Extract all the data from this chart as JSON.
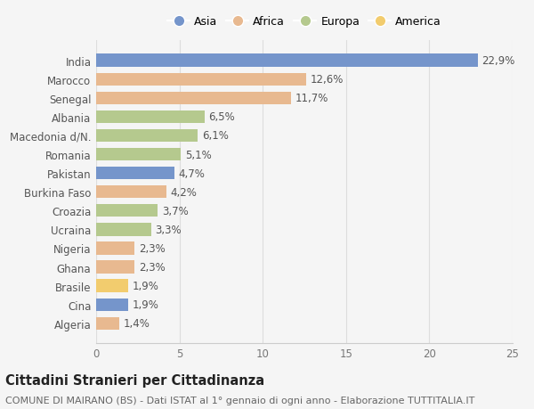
{
  "countries": [
    "Algeria",
    "Cina",
    "Brasile",
    "Ghana",
    "Nigeria",
    "Ucraina",
    "Croazia",
    "Burkina Faso",
    "Pakistan",
    "Romania",
    "Macedonia d/N.",
    "Albania",
    "Senegal",
    "Marocco",
    "India"
  ],
  "values": [
    1.4,
    1.9,
    1.9,
    2.3,
    2.3,
    3.3,
    3.7,
    4.2,
    4.7,
    5.1,
    6.1,
    6.5,
    11.7,
    12.6,
    22.9
  ],
  "labels": [
    "1,4%",
    "1,9%",
    "1,9%",
    "2,3%",
    "2,3%",
    "3,3%",
    "3,7%",
    "4,2%",
    "4,7%",
    "5,1%",
    "6,1%",
    "6,5%",
    "11,7%",
    "12,6%",
    "22,9%"
  ],
  "categories": [
    "Africa",
    "Asia",
    "America",
    "Africa",
    "Africa",
    "Europa",
    "Europa",
    "Africa",
    "Asia",
    "Europa",
    "Europa",
    "Europa",
    "Africa",
    "Africa",
    "Asia"
  ],
  "colors": {
    "Asia": "#7595cb",
    "Africa": "#e8b990",
    "Europa": "#b5c98e",
    "America": "#f2cc6e"
  },
  "legend_order": [
    "Asia",
    "Africa",
    "Europa",
    "America"
  ],
  "title": "Cittadini Stranieri per Cittadinanza",
  "subtitle": "COMUNE DI MAIRANO (BS) - Dati ISTAT al 1° gennaio di ogni anno - Elaborazione TUTTITALIA.IT",
  "xlim": [
    0,
    25
  ],
  "xticks": [
    0,
    5,
    10,
    15,
    20,
    25
  ],
  "background_color": "#f5f5f5",
  "title_fontsize": 10.5,
  "subtitle_fontsize": 8,
  "tick_fontsize": 8.5,
  "label_fontsize": 8.5,
  "legend_fontsize": 9,
  "bar_height": 0.68
}
